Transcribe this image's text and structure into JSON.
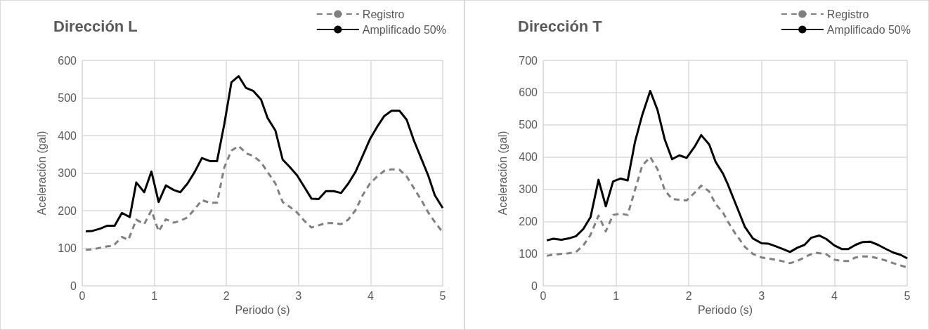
{
  "chart_data": [
    {
      "type": "line",
      "title": "Dirección L",
      "xlabel": "Periodo (s)",
      "ylabel": "Aceleración (gal)",
      "xlim": [
        0,
        5
      ],
      "xticks": [
        0,
        1,
        2,
        3,
        4,
        5
      ],
      "ylim": [
        0,
        600
      ],
      "yticks": [
        0,
        100,
        200,
        300,
        400,
        500,
        600
      ],
      "grid": true,
      "legend": "top right",
      "series": [
        {
          "name": "Registro",
          "color": "#808080",
          "line_style": "dashed",
          "x": [
            0.05,
            0.14,
            0.35,
            0.43,
            0.55,
            0.64,
            0.75,
            0.86,
            0.96,
            1.06,
            1.16,
            1.27,
            1.36,
            1.46,
            1.56,
            1.66,
            1.77,
            1.87,
            1.97,
            2.07,
            2.17,
            2.28,
            2.37,
            2.48,
            2.57,
            2.68,
            2.78,
            2.88,
            2.98,
            3.08,
            3.18,
            3.28,
            3.38,
            3.49,
            3.59,
            3.69,
            3.79,
            3.89,
            3.99,
            4.09,
            4.19,
            4.29,
            4.4,
            4.5,
            4.6,
            4.7,
            4.8,
            4.89,
            5.0
          ],
          "values": [
            96,
            97,
            105,
            106,
            130,
            122,
            176,
            164,
            201,
            145,
            177,
            168,
            173,
            182,
            204,
            228,
            221,
            221,
            315,
            360,
            372,
            352,
            346,
            329,
            303,
            272,
            223,
            210,
            195,
            173,
            155,
            161,
            167,
            167,
            164,
            176,
            201,
            241,
            272,
            291,
            306,
            310,
            309,
            291,
            260,
            229,
            195,
            170,
            142
          ]
        },
        {
          "name": "Amplificado 50%",
          "color": "#000000",
          "line_style": "solid",
          "x": [
            0.05,
            0.14,
            0.25,
            0.35,
            0.45,
            0.55,
            0.66,
            0.75,
            0.86,
            0.96,
            1.06,
            1.16,
            1.27,
            1.36,
            1.46,
            1.56,
            1.66,
            1.77,
            1.87,
            1.97,
            2.07,
            2.17,
            2.27,
            2.37,
            2.48,
            2.57,
            2.68,
            2.78,
            2.88,
            2.98,
            3.08,
            3.18,
            3.28,
            3.38,
            3.49,
            3.59,
            3.69,
            3.79,
            3.89,
            3.99,
            4.09,
            4.19,
            4.29,
            4.4,
            4.5,
            4.6,
            4.7,
            4.8,
            4.89,
            5.0
          ],
          "values": [
            145,
            146,
            152,
            160,
            160,
            194,
            183,
            275,
            249,
            304,
            223,
            267,
            255,
            249,
            272,
            303,
            340,
            332,
            332,
            430,
            542,
            558,
            527,
            519,
            496,
            447,
            413,
            336,
            316,
            294,
            263,
            232,
            231,
            252,
            252,
            247,
            272,
            303,
            346,
            390,
            423,
            452,
            466,
            466,
            442,
            387,
            340,
            293,
            241,
            207
          ]
        }
      ]
    },
    {
      "type": "line",
      "title": "Dirección T",
      "xlabel": "Periodo (s)",
      "ylabel": "Aceleración (gal)",
      "xlim": [
        0,
        5
      ],
      "xticks": [
        0,
        1,
        2,
        3,
        4,
        5
      ],
      "ylim": [
        0,
        700
      ],
      "yticks": [
        0,
        100,
        200,
        300,
        400,
        500,
        600,
        700
      ],
      "grid": true,
      "legend": "top right",
      "series": [
        {
          "name": "Registro",
          "color": "#808080",
          "line_style": "dashed",
          "x": [
            0.05,
            0.14,
            0.35,
            0.45,
            0.55,
            0.65,
            0.76,
            0.86,
            0.96,
            1.06,
            1.16,
            1.26,
            1.36,
            1.47,
            1.57,
            1.67,
            1.77,
            1.87,
            1.97,
            2.08,
            2.17,
            2.28,
            2.37,
            2.47,
            2.53,
            2.63,
            2.77,
            2.88,
            3.0,
            3.19,
            3.29,
            3.39,
            3.49,
            3.64,
            3.73,
            3.88,
            4.0,
            4.1,
            4.19,
            4.29,
            4.39,
            4.49,
            4.6,
            4.7,
            4.81,
            4.91,
            5.0
          ],
          "values": [
            93,
            97,
            101,
            105,
            125,
            158,
            218,
            169,
            220,
            224,
            220,
            297,
            373,
            400,
            362,
            297,
            269,
            267,
            265,
            289,
            311,
            293,
            253,
            227,
            202,
            165,
            121,
            99,
            88,
            81,
            76,
            70,
            77,
            94,
            103,
            99,
            81,
            77,
            77,
            88,
            91,
            91,
            85,
            79,
            70,
            63,
            57
          ]
        },
        {
          "name": "Amplificado 50%",
          "color": "#000000",
          "line_style": "solid",
          "x": [
            0.05,
            0.14,
            0.25,
            0.35,
            0.45,
            0.55,
            0.65,
            0.76,
            0.86,
            0.96,
            1.06,
            1.16,
            1.26,
            1.36,
            1.47,
            1.57,
            1.67,
            1.77,
            1.87,
            1.97,
            2.08,
            2.17,
            2.28,
            2.37,
            2.47,
            2.53,
            2.68,
            2.77,
            2.88,
            3.0,
            3.09,
            3.19,
            3.29,
            3.39,
            3.49,
            3.59,
            3.68,
            3.79,
            3.89,
            4.0,
            4.1,
            4.19,
            4.29,
            4.39,
            4.49,
            4.6,
            4.7,
            4.81,
            4.91,
            5.0
          ],
          "values": [
            141,
            146,
            143,
            147,
            154,
            176,
            213,
            329,
            247,
            324,
            333,
            327,
            446,
            530,
            605,
            546,
            454,
            393,
            405,
            397,
            432,
            468,
            439,
            384,
            348,
            318,
            234,
            183,
            147,
            132,
            131,
            123,
            114,
            105,
            118,
            127,
            149,
            156,
            145,
            125,
            114,
            114,
            127,
            136,
            137,
            127,
            115,
            103,
            96,
            85
          ]
        }
      ]
    }
  ]
}
